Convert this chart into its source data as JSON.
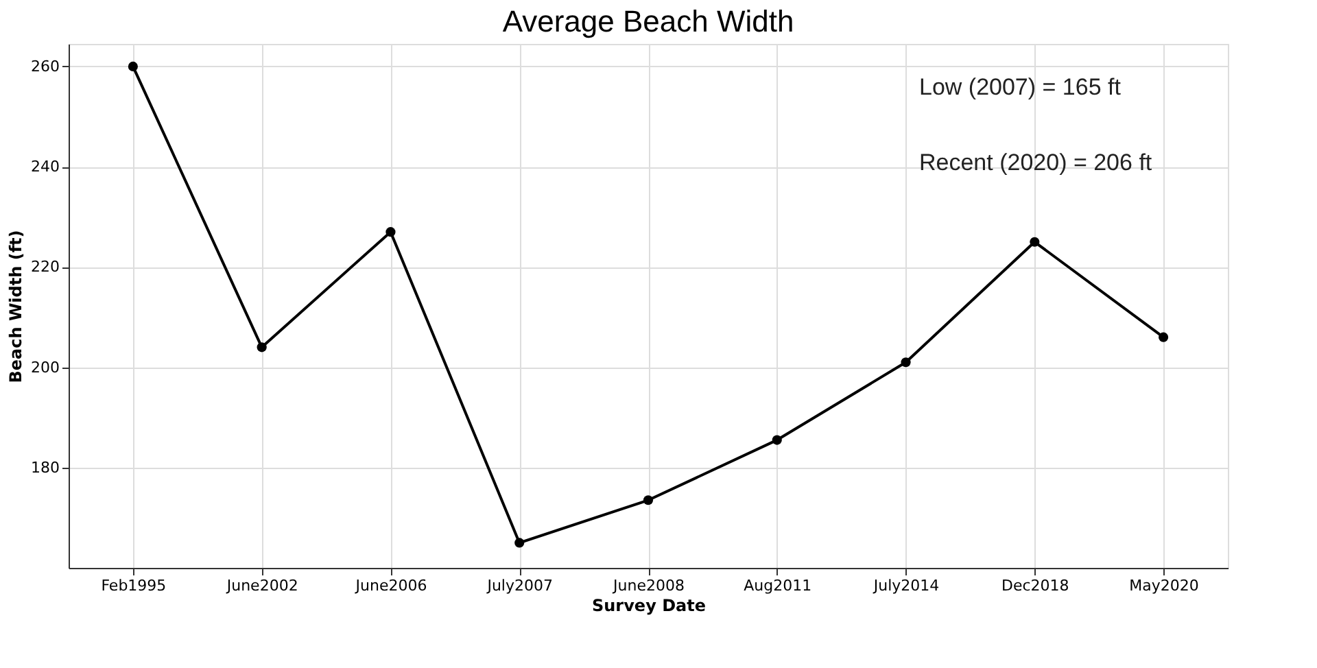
{
  "chart_data": {
    "type": "line",
    "title": "Average Beach Width",
    "xlabel": "Survey Date",
    "ylabel": "Beach Width (ft)",
    "categories": [
      "Feb1995",
      "June2002",
      "June2006",
      "July2007",
      "June2008",
      "Aug2011",
      "July2014",
      "Dec2018",
      "May2020"
    ],
    "series": [
      {
        "color": "#000000",
        "values": [
          260,
          204,
          227,
          165,
          173.5,
          185.5,
          201,
          225,
          206
        ]
      }
    ],
    "ylim": [
      160,
      264.5
    ],
    "yticks": [
      180,
      200,
      220,
      240,
      260
    ],
    "grid": true,
    "marker": "circle",
    "line_style": "solid",
    "annotations": [
      "Low (2007) = 165 ft",
      "Recent (2020) = 206 ft"
    ]
  }
}
